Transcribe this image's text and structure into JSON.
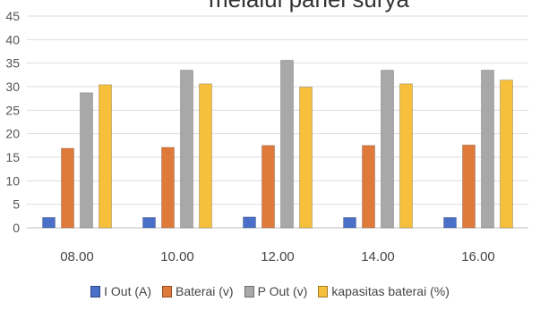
{
  "chart_data": {
    "type": "bar",
    "title": "melalui panel surya",
    "xlabel": "",
    "ylabel": "",
    "ylim": [
      0,
      45
    ],
    "yticks": [
      0,
      5,
      10,
      15,
      20,
      25,
      30,
      35,
      40,
      45
    ],
    "grid": true,
    "legend_position": "bottom",
    "categories": [
      "08.00",
      "10.00",
      "12.00",
      "14.00",
      "16.00"
    ],
    "series": [
      {
        "name": "I Out (A)",
        "color": "#4a6fc8",
        "values": [
          2.2,
          2.2,
          2.3,
          2.2,
          2.2
        ]
      },
      {
        "name": "Baterai (v)",
        "color": "#e07a3a",
        "values": [
          16.9,
          17.1,
          17.5,
          17.5,
          17.6
        ]
      },
      {
        "name": "P Out (v)",
        "color": "#a8a8a8",
        "values": [
          28.7,
          33.5,
          35.6,
          33.5,
          33.5
        ]
      },
      {
        "name": "kapasitas baterai (%)",
        "color": "#f6c03c",
        "values": [
          30.4,
          30.6,
          29.9,
          30.6,
          31.4
        ]
      }
    ]
  }
}
